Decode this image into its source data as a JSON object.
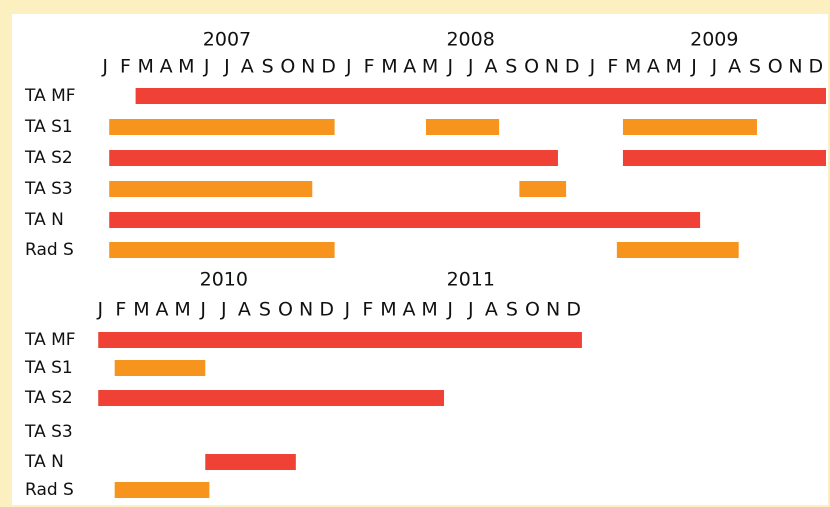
{
  "chart_data": [
    {
      "type": "gantt",
      "years": [
        "2007",
        "2008",
        "2009"
      ],
      "months": [
        "J",
        "F",
        "M",
        "A",
        "M",
        "J",
        "J",
        "A",
        "S",
        "O",
        "N",
        "D",
        "J",
        "F",
        "M",
        "A",
        "M",
        "J",
        "J",
        "A",
        "S",
        "O",
        "N",
        "D",
        "J",
        "F",
        "M",
        "A",
        "M",
        "J",
        "J",
        "A",
        "S",
        "O",
        "N",
        "D"
      ],
      "xlim": [
        0,
        36
      ],
      "rows": [
        {
          "name": "TA MF",
          "color": "#ef4136",
          "bars": [
            [
              2.0,
              36.0
            ]
          ]
        },
        {
          "name": "TA S1",
          "color": "#f7941d",
          "bars": [
            [
              0.7,
              11.8
            ],
            [
              16.3,
              19.9
            ],
            [
              26.0,
              32.6
            ]
          ]
        },
        {
          "name": "TA S2",
          "color": "#ef4136",
          "bars": [
            [
              0.7,
              22.8
            ],
            [
              26.0,
              36.0
            ]
          ]
        },
        {
          "name": "TA S3",
          "color": "#f7941d",
          "bars": [
            [
              0.7,
              10.7
            ],
            [
              20.9,
              23.2
            ]
          ]
        },
        {
          "name": "TA N",
          "color": "#ef4136",
          "bars": [
            [
              0.7,
              29.8
            ]
          ]
        },
        {
          "name": "Rad S",
          "color": "#f7941d",
          "bars": [
            [
              0.7,
              11.8
            ],
            [
              25.7,
              31.7
            ]
          ]
        }
      ]
    },
    {
      "type": "gantt",
      "years": [
        "2010",
        "2011"
      ],
      "months": [
        "J",
        "F",
        "M",
        "A",
        "M",
        "J",
        "J",
        "A",
        "S",
        "O",
        "N",
        "D",
        "J",
        "F",
        "M",
        "A",
        "M",
        "J",
        "J",
        "A",
        "S",
        "O",
        "N",
        "D"
      ],
      "xlim": [
        0,
        24
      ],
      "rows": [
        {
          "name": "TA MF",
          "color": "#ef4136",
          "bars": [
            [
              0.4,
              23.9
            ]
          ]
        },
        {
          "name": "TA S1",
          "color": "#f7941d",
          "bars": [
            [
              1.2,
              5.6
            ]
          ]
        },
        {
          "name": "TA S2",
          "color": "#ef4136",
          "bars": [
            [
              0.4,
              17.2
            ]
          ]
        },
        {
          "name": "TA S3",
          "color": "#f7941d",
          "bars": []
        },
        {
          "name": "TA N",
          "color": "#ef4136",
          "bars": [
            [
              5.6,
              10.0
            ]
          ]
        },
        {
          "name": "Rad S",
          "color": "#f7941d",
          "bars": [
            [
              1.2,
              5.8
            ]
          ]
        }
      ]
    }
  ]
}
